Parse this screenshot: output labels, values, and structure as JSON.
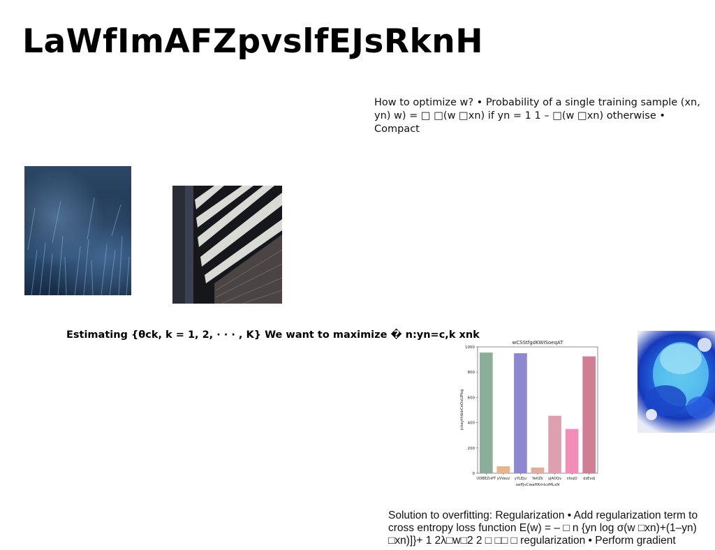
{
  "title": "LaWfImAFZpvslfEJsRknH",
  "paragraphs": {
    "p1": "How to optimize w? • Probability of a single training sample (xn, yn) w) = □ □(w □xn) if yn = 1 1 – □(w □xn) otherwise • Compact",
    "p2": "Estimating {θck, k = 1, 2, · · · , K} We want to maximize � n:yn=c,k xnk",
    "p3": "Solution to overfitting: Regularization • Add regularization term to cross entropy loss function E(w) = – □ n {yn log σ(w □xn)+(1–yn) □xn)]}+ 1 2λ□w□2 2 □ □□ □ regularization • Perform gradient"
  },
  "chart_data": {
    "type": "bar",
    "title": "wCSStfgdKWISoeqAT",
    "xlabel": "oePJvCwaHKmlczMLxN",
    "ylabel": "jckaythtbbCeOsLIPbg",
    "categories": [
      "UDBEZnPT",
      "yVVazz",
      "yYLEJu",
      "YetiZk",
      "yJAOQv",
      "cfoqD",
      "dzExdj"
    ],
    "values": [
      955,
      55,
      950,
      45,
      455,
      350,
      925
    ],
    "colors": [
      "#8aae98",
      "#e8b48c",
      "#8e88d0",
      "#e0ae9a",
      "#dea0b0",
      "#f28cb8",
      "#d07e94"
    ],
    "ylim": [
      0,
      1000
    ],
    "yticks": [
      "0",
      "200",
      "400",
      "600",
      "800",
      "1000"
    ],
    "grid": false
  }
}
